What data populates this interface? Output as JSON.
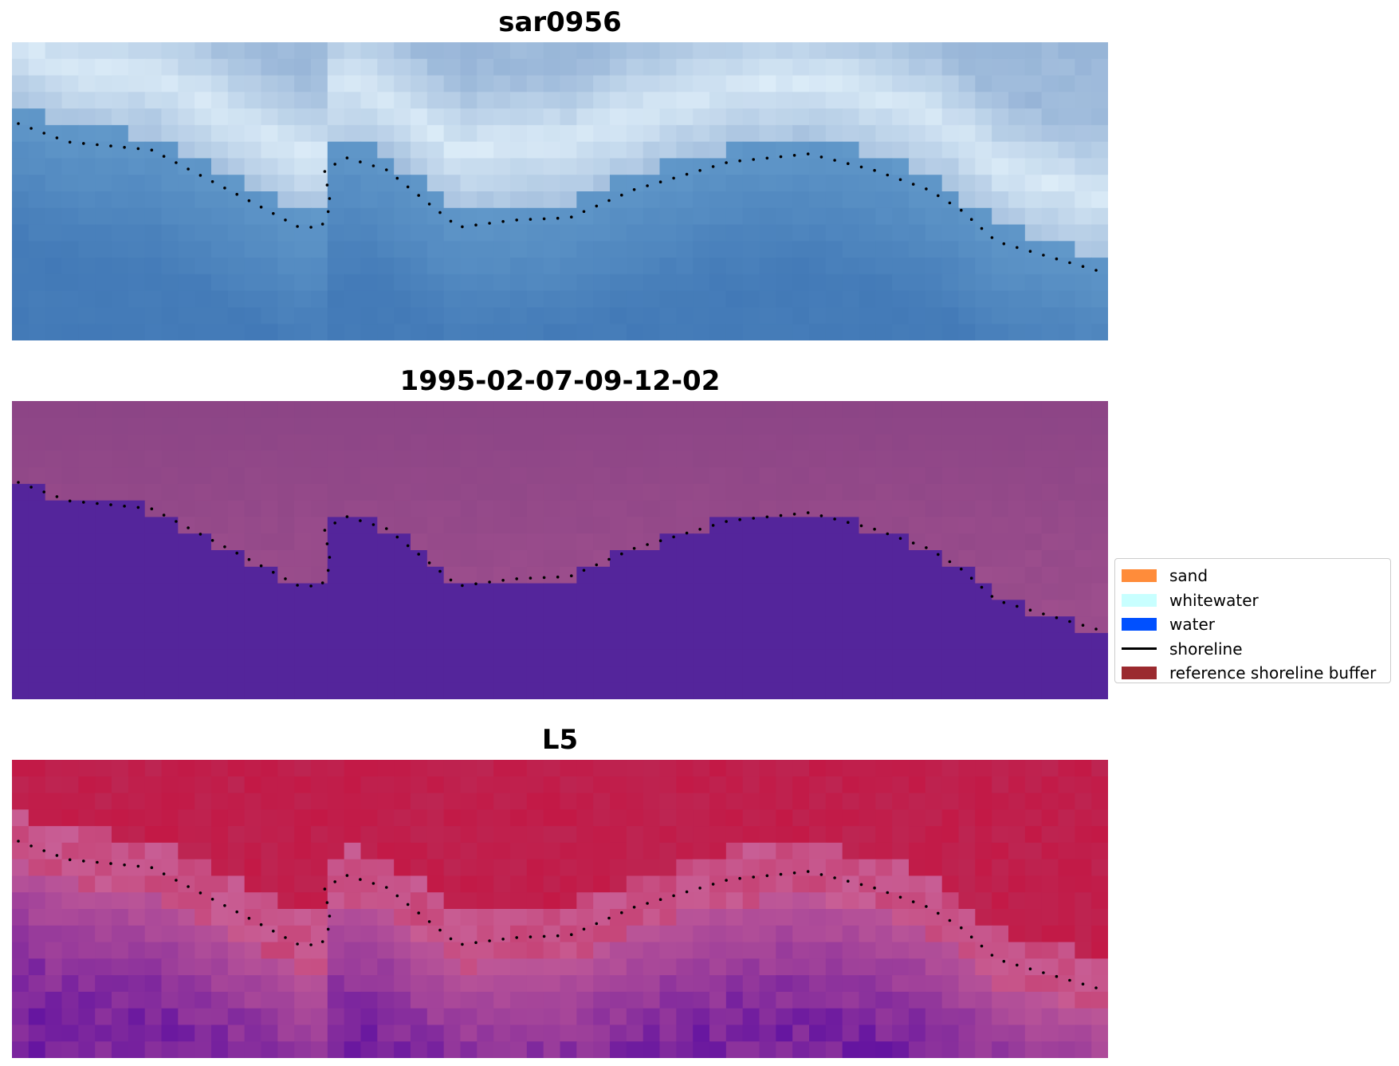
{
  "panels": [
    {
      "title": "sar0956",
      "palette": "blue"
    },
    {
      "title": "1995-02-07-09-12-02",
      "palette": "class"
    },
    {
      "title": "L5",
      "palette": "red"
    }
  ],
  "legend": {
    "items": [
      {
        "label": "sand",
        "type": "patch",
        "color": "#ff8c3a"
      },
      {
        "label": "whitewater",
        "type": "patch",
        "color": "#c8ffff"
      },
      {
        "label": "water",
        "type": "patch",
        "color": "#0050ff"
      },
      {
        "label": "shoreline",
        "type": "line",
        "color": "#000000"
      },
      {
        "label": "reference shoreline buffer",
        "type": "patch",
        "color": "#9b2a2f"
      }
    ]
  },
  "colors": {
    "class_land": "#8c4586",
    "class_water": "#54259b",
    "shoreline_dots": "#000000"
  }
}
